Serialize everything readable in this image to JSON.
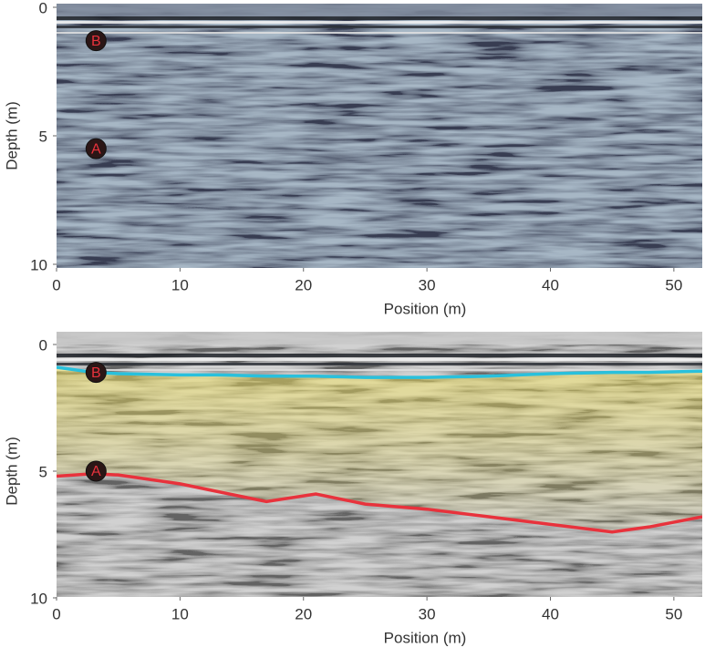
{
  "chart_data": [
    {
      "type": "radargram",
      "xlabel": "Position (m)",
      "ylabel": "Depth (m)",
      "xlim": [
        0,
        52.3
      ],
      "ylim": [
        0,
        10
      ],
      "xticks": [
        0,
        10,
        20,
        30,
        40,
        50
      ],
      "yticks": [
        0,
        5,
        10
      ],
      "background": "#6f7a8c",
      "annotations": [
        {
          "text": "B",
          "x": 3.2,
          "y": 1.3
        },
        {
          "text": "A",
          "x": 3.2,
          "y": 5.5
        }
      ]
    },
    {
      "type": "radargram",
      "xlabel": "Position (m)",
      "ylabel": "Depth (m)",
      "xlim": [
        0,
        52.3
      ],
      "ylim": [
        0,
        10
      ],
      "xticks": [
        0,
        10,
        20,
        30,
        40,
        50
      ],
      "yticks": [
        0,
        5,
        10
      ],
      "background": "#9a9a9a",
      "x": [
        0,
        3,
        5,
        10,
        13,
        17,
        21,
        25,
        30,
        35,
        40,
        45,
        48,
        52.3
      ],
      "series": [
        {
          "color": "#29c0dc",
          "values": [
            0.9,
            1.1,
            1.15,
            1.2,
            1.2,
            1.25,
            1.25,
            1.3,
            1.3,
            1.25,
            1.15,
            1.1,
            1.1,
            1.05
          ]
        },
        {
          "color": "#e8323c",
          "values": [
            5.2,
            5.1,
            5.15,
            5.5,
            5.8,
            6.2,
            5.9,
            6.3,
            6.5,
            6.8,
            7.1,
            7.4,
            7.2,
            6.8
          ]
        }
      ],
      "annotations": [
        {
          "text": "B",
          "x": 3.2,
          "y": 1.1
        },
        {
          "text": "A",
          "x": 3.2,
          "y": 5.0
        }
      ]
    }
  ]
}
